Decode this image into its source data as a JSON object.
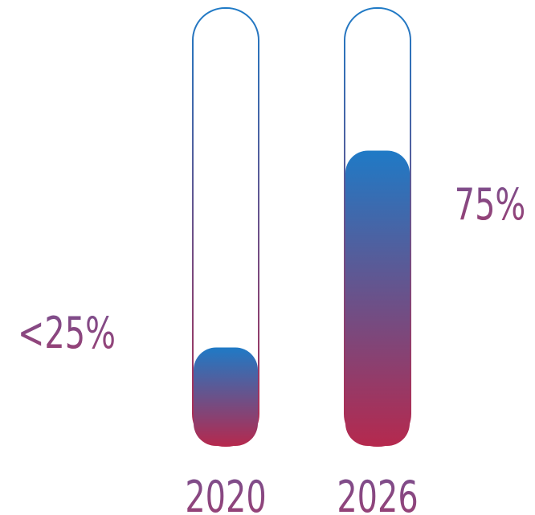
{
  "chart_data": {
    "type": "bar",
    "categories": [
      "2020",
      "2026"
    ],
    "values": [
      25,
      75
    ],
    "value_labels": [
      "<25%",
      "75%"
    ],
    "ylim": [
      0,
      100
    ],
    "title": "",
    "xlabel": "",
    "ylabel": "",
    "grid": false,
    "legend": "none",
    "colors": {
      "fill_top": "#1f7ac6",
      "fill_bottom": "#b5294e",
      "label": "#8a4a84"
    }
  }
}
